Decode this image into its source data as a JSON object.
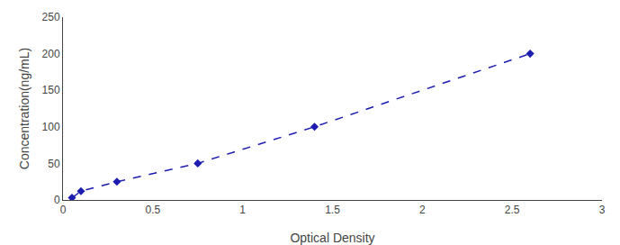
{
  "chart_data": {
    "type": "line",
    "x": [
      0.05,
      0.1,
      0.3,
      0.75,
      1.4,
      2.6
    ],
    "values": [
      3,
      12,
      25,
      50,
      100,
      200
    ],
    "color": "#1c1cb0",
    "marker": "diamond",
    "line_style": "dashed",
    "xlabel": "Optical Density",
    "ylabel": "Concentration(ng/mL)",
    "xlim": [
      0,
      3
    ],
    "ylim": [
      0,
      250
    ],
    "xticks": [
      0,
      0.5,
      1,
      1.5,
      2,
      2.5,
      3
    ],
    "yticks": [
      0,
      50,
      100,
      150,
      200,
      250
    ],
    "grid": false
  }
}
